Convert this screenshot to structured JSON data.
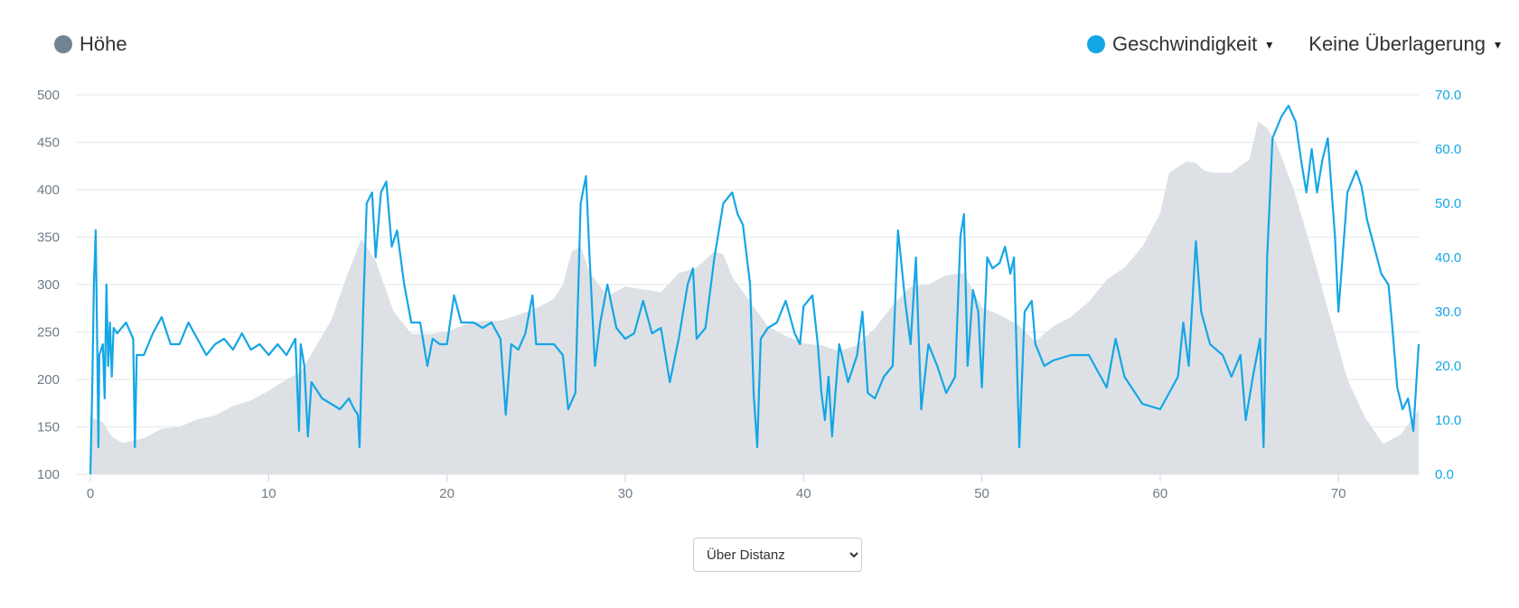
{
  "legend": {
    "elevation_label": "Höhe",
    "speed_label": "Geschwindigkeit",
    "overlay_label": "Keine Überlagerung",
    "caret": "▾",
    "elevation_color": "#708494",
    "speed_color": "#14a6e6"
  },
  "mode_select": {
    "selected": "Über Distanz"
  },
  "chart_data": {
    "type": "line",
    "x_ticks": [
      "0",
      "10",
      "20",
      "30",
      "40",
      "50",
      "60",
      "70"
    ],
    "y_left_ticks": [
      "100",
      "150",
      "200",
      "250",
      "300",
      "350",
      "400",
      "450",
      "500"
    ],
    "y_right_ticks": [
      "0.0",
      "10.0",
      "20.0",
      "30.0",
      "40.0",
      "50.0",
      "60.0",
      "70.0"
    ],
    "xlim": [
      0,
      74.5
    ],
    "ylim_left": [
      100,
      500
    ],
    "ylim_right": [
      0,
      70
    ],
    "grid": true,
    "series": [
      {
        "name": "Höhe",
        "axis": "left",
        "kind": "area",
        "color": "#dde1e5",
        "points": [
          [
            0,
            160
          ],
          [
            0.7,
            155
          ],
          [
            1.2,
            140
          ],
          [
            1.8,
            133
          ],
          [
            3,
            138
          ],
          [
            4,
            148
          ],
          [
            5,
            150
          ],
          [
            6,
            158
          ],
          [
            7,
            162
          ],
          [
            8,
            172
          ],
          [
            9,
            178
          ],
          [
            10,
            188
          ],
          [
            11,
            200
          ],
          [
            11.8,
            208
          ],
          [
            12.5,
            230
          ],
          [
            13.5,
            262
          ],
          [
            14.3,
            305
          ],
          [
            15.2,
            348
          ],
          [
            16,
            325
          ],
          [
            17,
            272
          ],
          [
            18,
            248
          ],
          [
            19,
            248
          ],
          [
            20,
            250
          ],
          [
            21,
            258
          ],
          [
            22,
            262
          ],
          [
            23,
            262
          ],
          [
            24,
            268
          ],
          [
            25,
            275
          ],
          [
            26,
            285
          ],
          [
            26.5,
            300
          ],
          [
            27,
            335
          ],
          [
            27.5,
            340
          ],
          [
            28,
            313
          ],
          [
            29,
            288
          ],
          [
            30,
            298
          ],
          [
            31,
            295
          ],
          [
            32,
            292
          ],
          [
            33,
            312
          ],
          [
            34,
            318
          ],
          [
            35,
            335
          ],
          [
            35.5,
            332
          ],
          [
            36,
            308
          ],
          [
            37,
            282
          ],
          [
            38,
            256
          ],
          [
            39,
            246
          ],
          [
            40,
            238
          ],
          [
            41,
            236
          ],
          [
            42,
            230
          ],
          [
            43,
            236
          ],
          [
            44,
            254
          ],
          [
            45,
            278
          ],
          [
            46,
            298
          ],
          [
            47,
            300
          ],
          [
            48,
            310
          ],
          [
            49,
            312
          ],
          [
            50,
            276
          ],
          [
            51,
            268
          ],
          [
            52,
            258
          ],
          [
            53,
            240
          ],
          [
            54,
            256
          ],
          [
            55,
            266
          ],
          [
            56,
            282
          ],
          [
            57,
            305
          ],
          [
            58,
            318
          ],
          [
            59,
            340
          ],
          [
            60,
            375
          ],
          [
            60.5,
            418
          ],
          [
            61.5,
            430
          ],
          [
            62,
            428
          ],
          [
            62.5,
            420
          ],
          [
            63,
            418
          ],
          [
            64,
            418
          ],
          [
            65,
            432
          ],
          [
            65.5,
            472
          ],
          [
            66,
            465
          ],
          [
            66.5,
            450
          ],
          [
            67.5,
            400
          ],
          [
            68.5,
            336
          ],
          [
            69.5,
            268
          ],
          [
            70.5,
            200
          ],
          [
            71.5,
            160
          ],
          [
            72.5,
            132
          ],
          [
            73.5,
            142
          ],
          [
            74.5,
            168
          ]
        ]
      },
      {
        "name": "Geschwindigkeit",
        "axis": "right",
        "kind": "line",
        "color": "#14a6e6",
        "points": [
          [
            0,
            0
          ],
          [
            0.1,
            15
          ],
          [
            0.2,
            35
          ],
          [
            0.3,
            45
          ],
          [
            0.4,
            20
          ],
          [
            0.45,
            5
          ],
          [
            0.5,
            22
          ],
          [
            0.7,
            24
          ],
          [
            0.8,
            14
          ],
          [
            0.9,
            35
          ],
          [
            1,
            20
          ],
          [
            1.1,
            28
          ],
          [
            1.2,
            18
          ],
          [
            1.3,
            27
          ],
          [
            1.5,
            26
          ],
          [
            2,
            28
          ],
          [
            2.4,
            25
          ],
          [
            2.5,
            5
          ],
          [
            2.6,
            22
          ],
          [
            3,
            22
          ],
          [
            3.5,
            26
          ],
          [
            4,
            29
          ],
          [
            4.5,
            24
          ],
          [
            5,
            24
          ],
          [
            5.5,
            28
          ],
          [
            6,
            25
          ],
          [
            6.5,
            22
          ],
          [
            7,
            24
          ],
          [
            7.5,
            25
          ],
          [
            8,
            23
          ],
          [
            8.5,
            26
          ],
          [
            9,
            23
          ],
          [
            9.5,
            24
          ],
          [
            10,
            22
          ],
          [
            10.5,
            24
          ],
          [
            11,
            22
          ],
          [
            11.5,
            25
          ],
          [
            11.7,
            8
          ],
          [
            11.8,
            24
          ],
          [
            12,
            20
          ],
          [
            12.2,
            7
          ],
          [
            12.4,
            17
          ],
          [
            13,
            14
          ],
          [
            13.5,
            13
          ],
          [
            14,
            12
          ],
          [
            14.5,
            14
          ],
          [
            14.8,
            12
          ],
          [
            15,
            11
          ],
          [
            15.1,
            5
          ],
          [
            15.3,
            30
          ],
          [
            15.5,
            50
          ],
          [
            15.8,
            52
          ],
          [
            16,
            40
          ],
          [
            16.3,
            52
          ],
          [
            16.6,
            54
          ],
          [
            16.9,
            42
          ],
          [
            17.2,
            45
          ],
          [
            17.6,
            35
          ],
          [
            18,
            28
          ],
          [
            18.5,
            28
          ],
          [
            18.9,
            20
          ],
          [
            19.2,
            25
          ],
          [
            19.6,
            24
          ],
          [
            20,
            24
          ],
          [
            20.4,
            33
          ],
          [
            20.8,
            28
          ],
          [
            21.5,
            28
          ],
          [
            22,
            27
          ],
          [
            22.5,
            28
          ],
          [
            23,
            25
          ],
          [
            23.3,
            11
          ],
          [
            23.6,
            24
          ],
          [
            24,
            23
          ],
          [
            24.4,
            26
          ],
          [
            24.8,
            33
          ],
          [
            25,
            24
          ],
          [
            25.5,
            24
          ],
          [
            26,
            24
          ],
          [
            26.5,
            22
          ],
          [
            26.8,
            12
          ],
          [
            27.2,
            15
          ],
          [
            27.5,
            50
          ],
          [
            27.8,
            55
          ],
          [
            28,
            40
          ],
          [
            28.3,
            20
          ],
          [
            28.6,
            28
          ],
          [
            29,
            35
          ],
          [
            29.5,
            27
          ],
          [
            30,
            25
          ],
          [
            30.5,
            26
          ],
          [
            31,
            32
          ],
          [
            31.5,
            26
          ],
          [
            32,
            27
          ],
          [
            32.5,
            17
          ],
          [
            33,
            25
          ],
          [
            33.5,
            35
          ],
          [
            33.8,
            38
          ],
          [
            34,
            25
          ],
          [
            34.5,
            27
          ],
          [
            35,
            40
          ],
          [
            35.5,
            50
          ],
          [
            36,
            52
          ],
          [
            36.3,
            48
          ],
          [
            36.6,
            46
          ],
          [
            37,
            35
          ],
          [
            37.2,
            15
          ],
          [
            37.4,
            5
          ],
          [
            37.6,
            25
          ],
          [
            38,
            27
          ],
          [
            38.5,
            28
          ],
          [
            39,
            32
          ],
          [
            39.5,
            26
          ],
          [
            39.8,
            24
          ],
          [
            40,
            31
          ],
          [
            40.5,
            33
          ],
          [
            40.8,
            24
          ],
          [
            41,
            15
          ],
          [
            41.2,
            10
          ],
          [
            41.4,
            18
          ],
          [
            41.6,
            7
          ],
          [
            42,
            24
          ],
          [
            42.5,
            17
          ],
          [
            43,
            22
          ],
          [
            43.3,
            30
          ],
          [
            43.6,
            15
          ],
          [
            44,
            14
          ],
          [
            44.5,
            18
          ],
          [
            45,
            20
          ],
          [
            45.3,
            45
          ],
          [
            45.7,
            32
          ],
          [
            46,
            24
          ],
          [
            46.3,
            40
          ],
          [
            46.6,
            12
          ],
          [
            47,
            24
          ],
          [
            47.5,
            20
          ],
          [
            48,
            15
          ],
          [
            48.5,
            18
          ],
          [
            48.8,
            44
          ],
          [
            49,
            48
          ],
          [
            49.2,
            20
          ],
          [
            49.5,
            34
          ],
          [
            49.8,
            30
          ],
          [
            50,
            16
          ],
          [
            50.3,
            40
          ],
          [
            50.6,
            38
          ],
          [
            51,
            39
          ],
          [
            51.3,
            42
          ],
          [
            51.6,
            37
          ],
          [
            51.8,
            40
          ],
          [
            52.1,
            5
          ],
          [
            52.4,
            30
          ],
          [
            52.8,
            32
          ],
          [
            53,
            24
          ],
          [
            53.5,
            20
          ],
          [
            54,
            21
          ],
          [
            55,
            22
          ],
          [
            56,
            22
          ],
          [
            57,
            16
          ],
          [
            57.5,
            25
          ],
          [
            58,
            18
          ],
          [
            59,
            13
          ],
          [
            60,
            12
          ],
          [
            60.5,
            15
          ],
          [
            61,
            18
          ],
          [
            61.3,
            28
          ],
          [
            61.6,
            20
          ],
          [
            62,
            43
          ],
          [
            62.3,
            30
          ],
          [
            62.8,
            24
          ],
          [
            63.5,
            22
          ],
          [
            64,
            18
          ],
          [
            64.5,
            22
          ],
          [
            64.8,
            10
          ],
          [
            65.2,
            18
          ],
          [
            65.6,
            25
          ],
          [
            65.8,
            5
          ],
          [
            66,
            40
          ],
          [
            66.3,
            62
          ],
          [
            66.8,
            66
          ],
          [
            67.2,
            68
          ],
          [
            67.6,
            65
          ],
          [
            67.9,
            58
          ],
          [
            68.2,
            52
          ],
          [
            68.5,
            60
          ],
          [
            68.8,
            52
          ],
          [
            69.1,
            58
          ],
          [
            69.4,
            62
          ],
          [
            69.8,
            44
          ],
          [
            70,
            30
          ],
          [
            70.5,
            52
          ],
          [
            71,
            56
          ],
          [
            71.3,
            53
          ],
          [
            71.6,
            47
          ],
          [
            72,
            42
          ],
          [
            72.4,
            37
          ],
          [
            72.8,
            35
          ],
          [
            73,
            28
          ],
          [
            73.3,
            16
          ],
          [
            73.6,
            12
          ],
          [
            73.9,
            14
          ],
          [
            74.2,
            8
          ],
          [
            74.5,
            24
          ]
        ]
      }
    ]
  }
}
